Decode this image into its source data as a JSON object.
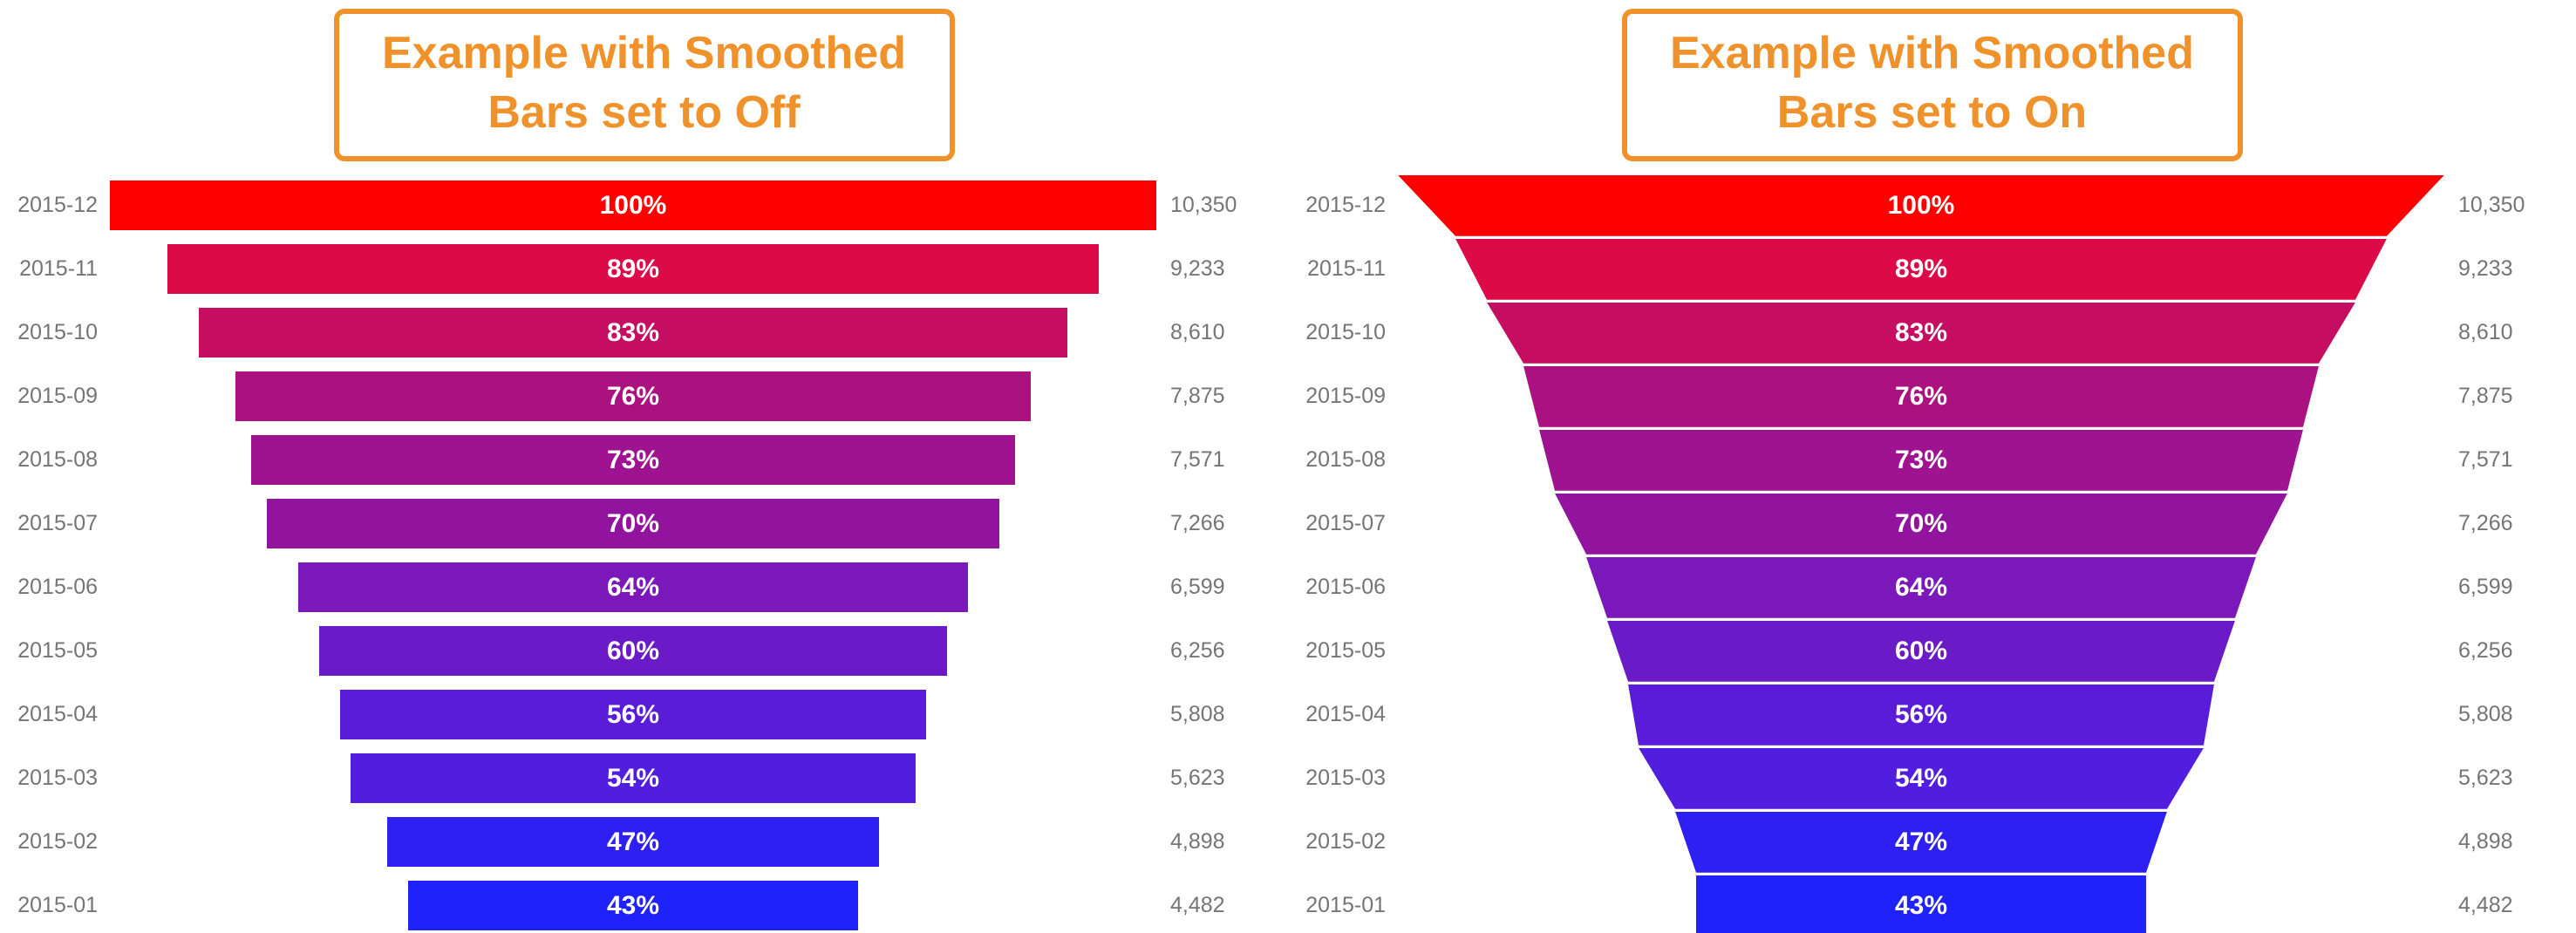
{
  "chart_data": [
    {
      "type": "funnel",
      "smoothed": false,
      "title": "Example with Smoothed Bars set to Off",
      "title_color": "#F0922B",
      "label_color": "#757575",
      "background": "#FFFFFF",
      "legend": "none",
      "categories": [
        "2015-12",
        "2015-11",
        "2015-10",
        "2015-09",
        "2015-08",
        "2015-07",
        "2015-06",
        "2015-05",
        "2015-04",
        "2015-03",
        "2015-02",
        "2015-01"
      ],
      "percents": [
        100,
        89,
        83,
        76,
        73,
        70,
        64,
        60,
        56,
        54,
        47,
        43
      ],
      "percent_labels": [
        "100%",
        "89%",
        "83%",
        "76%",
        "73%",
        "70%",
        "64%",
        "60%",
        "56%",
        "54%",
        "47%",
        "43%"
      ],
      "values": [
        10350,
        9233,
        8610,
        7875,
        7571,
        7266,
        6599,
        6256,
        5808,
        5623,
        4898,
        4482
      ],
      "value_labels": [
        "10,350",
        "9,233",
        "8,610",
        "7,875",
        "7,571",
        "7,266",
        "6,599",
        "6,256",
        "5,808",
        "5,623",
        "4,898",
        "4,482"
      ],
      "colors": [
        "#FE0000",
        "#DC0A47",
        "#C50D62",
        "#AC1180",
        "#A01390",
        "#92149E",
        "#7A18BA",
        "#6B1AC8",
        "#5A1CD8",
        "#511DDE",
        "#2E20F3",
        "#2022FB"
      ],
      "gradient": {
        "top": "#FE0000",
        "bottom": "#2022FB"
      }
    },
    {
      "type": "funnel",
      "smoothed": true,
      "title": "Example with Smoothed Bars set to On",
      "title_color": "#F0922B",
      "label_color": "#757575",
      "background": "#FFFFFF",
      "legend": "none",
      "categories": [
        "2015-12",
        "2015-11",
        "2015-10",
        "2015-09",
        "2015-08",
        "2015-07",
        "2015-06",
        "2015-05",
        "2015-04",
        "2015-03",
        "2015-02",
        "2015-01"
      ],
      "percents": [
        100,
        89,
        83,
        76,
        73,
        70,
        64,
        60,
        56,
        54,
        47,
        43
      ],
      "percent_labels": [
        "100%",
        "89%",
        "83%",
        "76%",
        "73%",
        "70%",
        "64%",
        "60%",
        "56%",
        "54%",
        "47%",
        "43%"
      ],
      "values": [
        10350,
        9233,
        8610,
        7875,
        7571,
        7266,
        6599,
        6256,
        5808,
        5623,
        4898,
        4482
      ],
      "value_labels": [
        "10,350",
        "9,233",
        "8,610",
        "7,875",
        "7,571",
        "7,266",
        "6,599",
        "6,256",
        "5,808",
        "5,623",
        "4,898",
        "4,482"
      ],
      "colors": [
        "#FE0000",
        "#DC0A47",
        "#C50D62",
        "#AC1180",
        "#A01390",
        "#92149E",
        "#7A18BA",
        "#6B1AC8",
        "#5A1CD8",
        "#511DDE",
        "#2E20F3",
        "#2022FB"
      ],
      "gradient": {
        "top": "#FE0000",
        "bottom": "#2022FB"
      }
    }
  ]
}
